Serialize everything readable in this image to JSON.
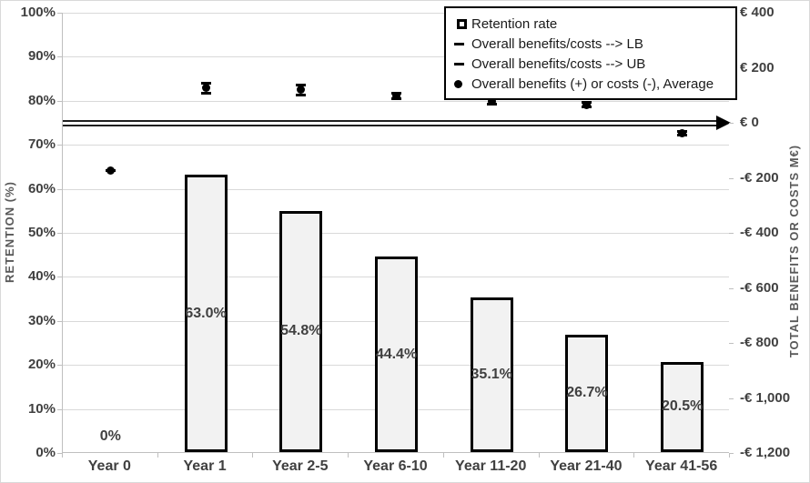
{
  "chart_data": {
    "type": "bar",
    "subtype": "combo-bar-scatter",
    "categories": [
      "Year 0",
      "Year 1",
      "Year 2-5",
      "Year 6-10",
      "Year 11-20",
      "Year 21-40",
      "Year 41-56"
    ],
    "bar_series": {
      "name": "Retention rate",
      "axis": "left",
      "values": [
        0,
        63.0,
        54.8,
        44.4,
        35.1,
        26.7,
        20.5
      ],
      "labels": [
        "0%",
        "63.0%",
        "54.8%",
        "44.4%",
        "35.1%",
        "26.7%",
        "20.5%"
      ]
    },
    "scatter_series": [
      {
        "name": "Overall benefits/costs --> LB",
        "marker": "dash",
        "axis": "right",
        "values": [
          -175,
          109,
          101,
          88,
          68,
          58,
          -46
        ]
      },
      {
        "name": "Overall benefits/costs --> UB",
        "marker": "dash",
        "axis": "right",
        "values": [
          -175,
          145,
          136,
          107,
          88,
          74,
          -30
        ]
      },
      {
        "name": "Overall benefits (+) or costs (-), Average",
        "marker": "circle",
        "axis": "right",
        "values": [
          -175,
          127,
          120,
          97,
          78,
          66,
          -38
        ]
      }
    ],
    "left_axis": {
      "title": "RETENTION  (%)",
      "min": 0,
      "max": 100,
      "step": 10,
      "ticks": [
        "100%",
        "90%",
        "80%",
        "70%",
        "60%",
        "50%",
        "40%",
        "30%",
        "20%",
        "10%",
        "0%"
      ]
    },
    "right_axis": {
      "title": "TOTAL BENEFITS OR COSTS M€)",
      "min": -1200,
      "max": 400,
      "step": 200,
      "ticks": [
        "€ 400",
        "€ 200",
        "€ 0",
        "-€ 200",
        "-€ 400",
        "-€ 600",
        "-€ 800",
        "-€ 1,000",
        "-€ 1,200"
      ]
    },
    "zero_arrow": {
      "axis": "right",
      "value": 0,
      "style": "double-line-right-arrow"
    },
    "legend": {
      "position": "top-right",
      "items": [
        {
          "marker": "square",
          "label": "Retention rate"
        },
        {
          "marker": "dash",
          "label": "Overall benefits/costs --> LB"
        },
        {
          "marker": "dash",
          "label": "Overall benefits/costs --> UB"
        },
        {
          "marker": "circle",
          "label": "Overall benefits (+) or costs (-), Average"
        }
      ]
    },
    "grid": true,
    "legend_border": true,
    "colors": {
      "marker": "#000000",
      "grid": "#d9d9d9",
      "axis_line": "#bfbfbf",
      "tick_text": "#404040",
      "bar_fill": "#f2f2f2",
      "bar_border": "#000000",
      "background": "#ffffff"
    }
  }
}
